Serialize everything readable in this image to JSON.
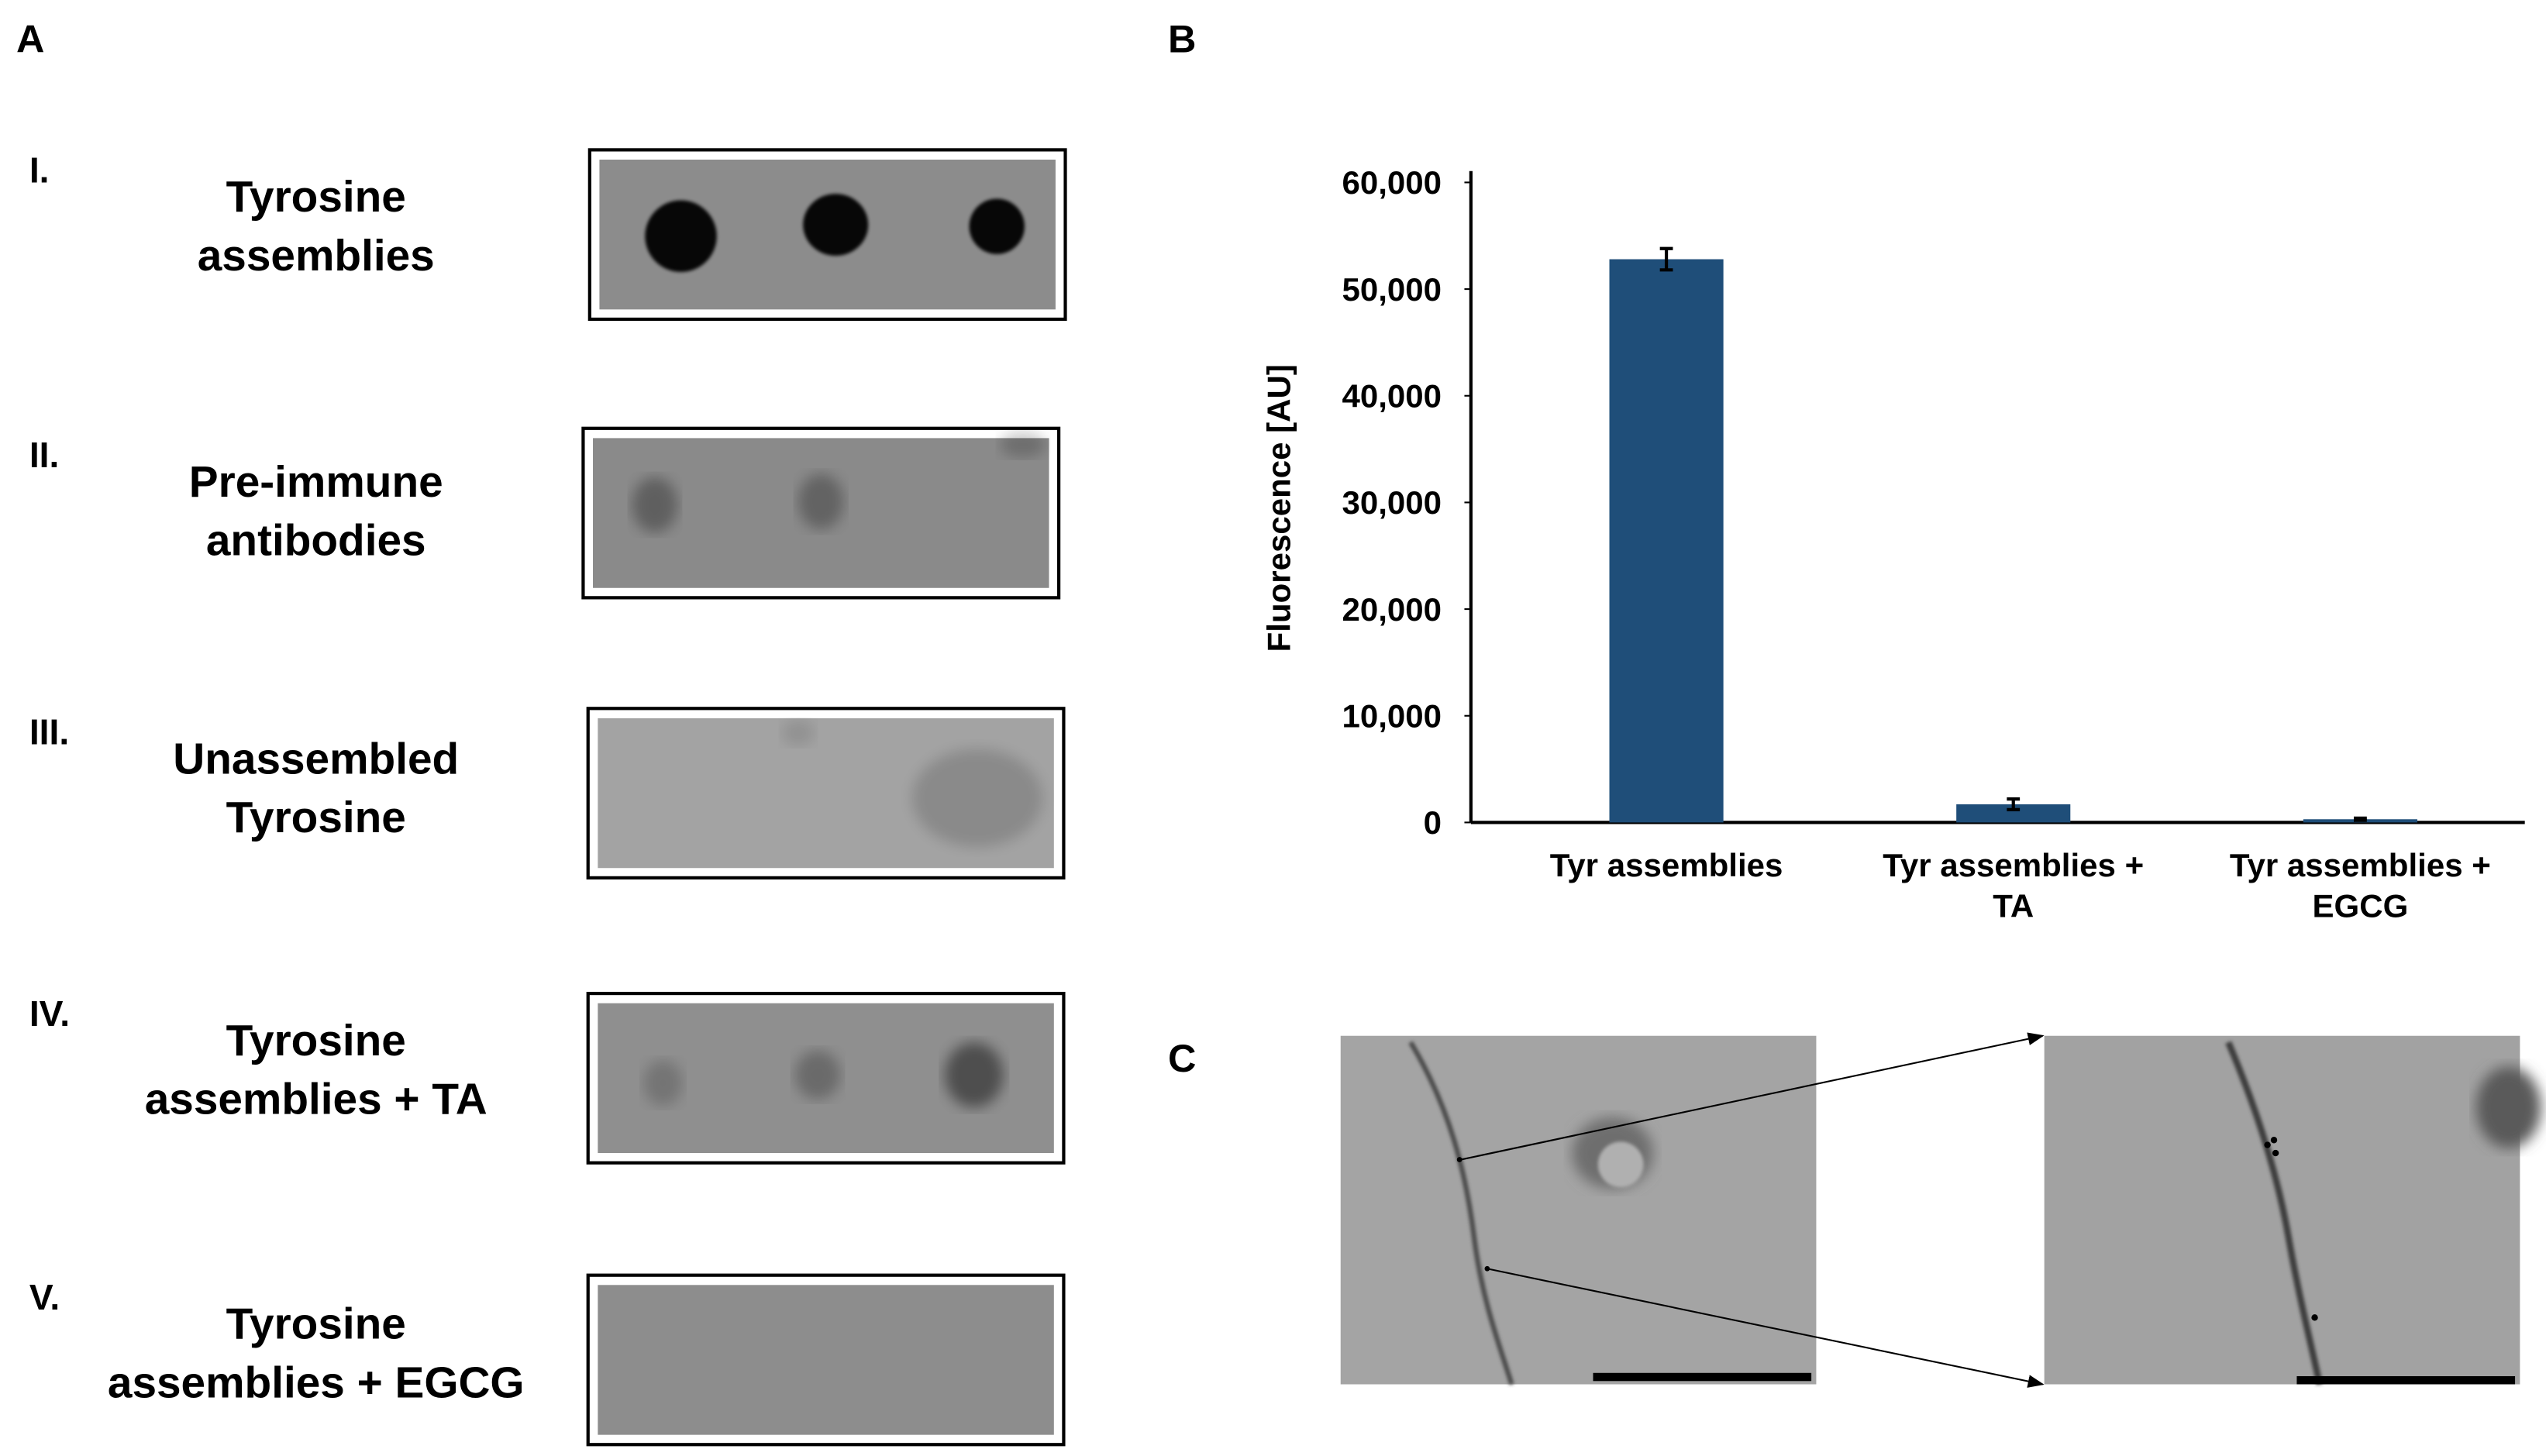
{
  "panel_a": {
    "letter": "A",
    "rows": [
      {
        "numeral": "I.",
        "lines": [
          "Tyrosine",
          "assemblies"
        ]
      },
      {
        "numeral": "II.",
        "lines": [
          "Pre-immune",
          "antibodies"
        ]
      },
      {
        "numeral": "III.",
        "lines": [
          "Unassembled",
          "Tyrosine"
        ]
      },
      {
        "numeral": "IV.",
        "lines": [
          "Tyrosine",
          "assemblies + TA"
        ]
      },
      {
        "numeral": "V.",
        "lines": [
          "Tyrosine",
          "assemblies + EGCG"
        ]
      }
    ]
  },
  "panel_b": {
    "letter": "B"
  },
  "panel_c": {
    "letter": "C"
  },
  "chart_data": {
    "type": "bar",
    "y_label": "Fluorescence [AU]",
    "categories": [
      "Tyr assemblies",
      "Tyr assemblies + TA",
      "Tyr assemblies + EGCG"
    ],
    "values": [
      52800,
      1700,
      300
    ],
    "errors": [
      1000,
      500,
      100
    ],
    "color": "#1f4e79",
    "ylim": [
      0,
      60000
    ],
    "yticks": [
      0,
      {
        "value": 10000,
        "label": "10,000"
      },
      {
        "value": 20000,
        "label": "20,000"
      },
      {
        "value": 30000,
        "label": "30,000"
      },
      {
        "value": 40000,
        "label": "40,000"
      },
      {
        "value": 50000,
        "label": "50,000"
      },
      {
        "value": 60000,
        "label": "60,000"
      }
    ],
    "grid": false
  }
}
